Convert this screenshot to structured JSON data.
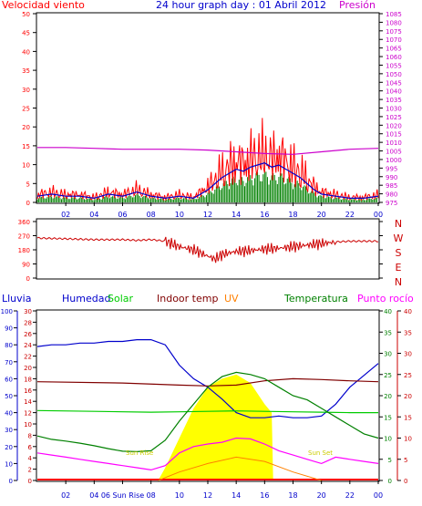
{
  "header": {
    "title": "24 hour graph day : 01 Abril 2012",
    "left_label": "Velocidad viento",
    "right_label": "Presión"
  },
  "colors": {
    "wind": "#ff0000",
    "wind_avg": "#008000",
    "wind_dir": "#cc0000",
    "pressure": "#cc00cc",
    "humidity": "#0000cc",
    "solar": "#00cc00",
    "indoor": "#800000",
    "uv": "#ff8000",
    "temperature": "#008000",
    "dewpoint": "#ff00ff",
    "rain": "#ff0000",
    "solar_fill": "#ffff00",
    "axis_blue": "#0000cc",
    "axis_red": "#cc0000",
    "axis_magenta": "#cc00cc"
  },
  "chart_data": [
    {
      "type": "line",
      "title": "24 hour graph day : 01 Abril 2012",
      "ylabel": "Velocidad viento",
      "ylabel_right": "Presión",
      "x_ticks": [
        "02",
        "04",
        "06",
        "08",
        "10",
        "12",
        "14",
        "16",
        "18",
        "20",
        "22",
        "00"
      ],
      "y_ticks": [
        "0",
        "5",
        "10",
        "15",
        "20",
        "25",
        "30",
        "35",
        "40",
        "45",
        "50"
      ],
      "y_ticks_right": [
        "975",
        "980",
        "985",
        "990",
        "995",
        "1000",
        "1005",
        "1010",
        "1015",
        "1020",
        "1025",
        "1030",
        "1035",
        "1040",
        "1045",
        "1050",
        "1055",
        "1060",
        "1065",
        "1070",
        "1075",
        "1080",
        "1085"
      ],
      "ylim": [
        0,
        50
      ],
      "ylim_right": [
        975,
        1085
      ],
      "series": [
        {
          "name": "Velocidad viento",
          "x": [
            0,
            1,
            2,
            3,
            4,
            5,
            6,
            7,
            8,
            9,
            10,
            11,
            12,
            12.5,
            13,
            13.5,
            14,
            14.5,
            15,
            15.5,
            16,
            16.5,
            17,
            17.5,
            18,
            18.5,
            19,
            19.5,
            20,
            21,
            22,
            23,
            24
          ],
          "y": [
            3,
            4,
            3,
            3,
            2,
            4,
            3,
            5,
            3,
            2,
            3,
            2,
            6,
            9,
            12,
            14,
            16,
            15,
            17,
            18,
            19,
            17,
            18,
            16,
            14,
            12,
            9,
            6,
            4,
            3,
            2,
            2,
            3
          ]
        },
        {
          "name": "Presión",
          "x": [
            0,
            2,
            4,
            6,
            8,
            10,
            12,
            14,
            16,
            18,
            20,
            22,
            24
          ],
          "y": [
            1007,
            1007,
            1006.5,
            1006,
            1006,
            1006,
            1005.5,
            1004.5,
            1003.5,
            1003,
            1004.5,
            1006,
            1006.5
          ]
        }
      ]
    },
    {
      "type": "line",
      "y_ticks": [
        "0",
        "90",
        "180",
        "270",
        "360"
      ],
      "y_ticks_right": [
        "N",
        "W",
        "S",
        "E",
        "N"
      ],
      "ylim": [
        0,
        360
      ],
      "series": [
        {
          "name": "",
          "x": [
            0,
            2,
            4,
            6,
            7,
            8,
            9,
            10,
            11,
            12,
            12.5,
            13,
            13.5,
            14,
            15,
            16,
            17,
            18,
            19,
            20,
            21,
            22,
            24
          ],
          "y": [
            255,
            250,
            245,
            245,
            240,
            245,
            235,
            200,
            180,
            140,
            120,
            150,
            160,
            170,
            175,
            185,
            190,
            200,
            210,
            220,
            230,
            235,
            235
          ]
        }
      ]
    },
    {
      "type": "area",
      "labels": [
        "Lluvia",
        "Humedad",
        "Solar",
        "Indoor temp",
        "UV",
        "Temperatura",
        "Punto rocío"
      ],
      "x_ticks": [
        "02",
        "04",
        "06 Sun Rise",
        "08",
        "10",
        "12",
        "14",
        "16",
        "18",
        "20",
        "22",
        "00"
      ],
      "annotations": [
        "Sun Rise",
        "Sun Set"
      ],
      "y_ticks_lluvia": [
        "0",
        "10",
        "20",
        "30",
        "40",
        "50",
        "60",
        "70",
        "80",
        "90",
        "100"
      ],
      "y_ticks_humedad": [
        "0",
        "2",
        "4",
        "6",
        "8",
        "10",
        "12",
        "14",
        "16",
        "18",
        "20",
        "22",
        "24",
        "26",
        "28",
        "30"
      ],
      "y_ticks_temp": [
        "0",
        "5",
        "10",
        "15",
        "20",
        "25",
        "30",
        "35",
        "40"
      ],
      "y_ticks_dew": [
        "0",
        "5",
        "10",
        "15",
        "20",
        "25",
        "30",
        "35",
        "40"
      ],
      "series": [
        {
          "name": "Humedad",
          "x": [
            0,
            1,
            2,
            3,
            4,
            5,
            6,
            7,
            8,
            9,
            10,
            11,
            12,
            13,
            14,
            15,
            16,
            17,
            18,
            19,
            20,
            21,
            22,
            23,
            24
          ],
          "y": [
            79,
            80,
            80,
            81,
            81,
            82,
            82,
            83,
            83,
            80,
            68,
            60,
            55,
            48,
            40,
            37,
            37,
            38,
            37,
            37,
            38,
            45,
            55,
            62,
            69
          ]
        },
        {
          "name": "Solar",
          "x": [
            0,
            4,
            8,
            10,
            12,
            14,
            16,
            18,
            20,
            22,
            24
          ],
          "y": [
            16.5,
            16.3,
            16.1,
            16.2,
            16.3,
            16.4,
            16.3,
            16.2,
            16.1,
            16.0,
            16.0
          ]
        },
        {
          "name": "Indoor temp",
          "x": [
            0,
            6,
            10,
            12,
            14,
            16,
            18,
            20,
            22,
            24
          ],
          "y": [
            23.3,
            23,
            22.5,
            22.3,
            22.5,
            23.5,
            24,
            23.8,
            23.5,
            23.3
          ]
        },
        {
          "name": "Temperatura",
          "x": [
            0,
            1,
            2,
            3,
            4,
            5,
            6,
            7,
            8,
            9,
            10,
            11,
            12,
            13,
            14,
            15,
            16,
            17,
            18,
            19,
            20,
            21,
            22,
            23,
            24
          ],
          "y": [
            10.5,
            9.7,
            9.3,
            8.8,
            8.2,
            7.5,
            6.9,
            6.8,
            7,
            9.5,
            14,
            18,
            22,
            24.5,
            25.5,
            25,
            24,
            22,
            20,
            19,
            17,
            15,
            13,
            11,
            10
          ]
        },
        {
          "name": "Punto rocío",
          "x": [
            0,
            1,
            2,
            3,
            4,
            5,
            6,
            7,
            8,
            9,
            10,
            11,
            12,
            13,
            14,
            15,
            16,
            17,
            18,
            19,
            20,
            21,
            22,
            23,
            24
          ],
          "y": [
            6.5,
            6,
            5.5,
            5,
            4.5,
            4,
            3.5,
            3,
            2.5,
            3.5,
            6.5,
            8,
            8.6,
            9,
            10,
            9.8,
            8.6,
            7,
            6,
            5,
            4,
            5.5,
            5,
            4.5,
            4
          ]
        },
        {
          "name": "Solar radiation",
          "x": [
            8.5,
            9,
            10,
            11,
            12,
            13,
            14,
            15,
            16,
            16.5,
            16.6,
            24
          ],
          "y": [
            0,
            3,
            10,
            17,
            22,
            24,
            25,
            23,
            18,
            16,
            0,
            0
          ]
        },
        {
          "name": "UV",
          "x": [
            8.5,
            10,
            12,
            14,
            16,
            18,
            20
          ],
          "y": [
            0,
            2,
            4,
            5.5,
            4.5,
            2,
            0
          ]
        }
      ]
    }
  ]
}
